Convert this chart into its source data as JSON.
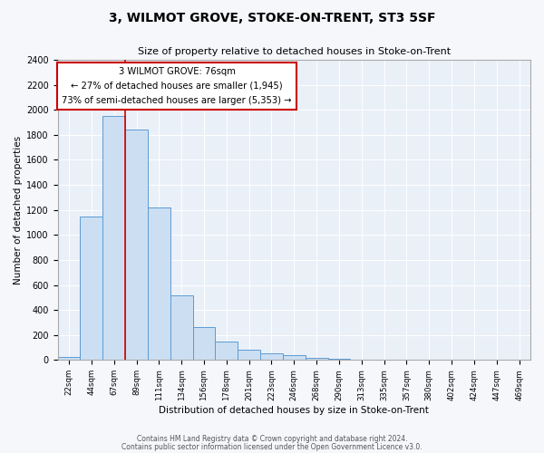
{
  "title": "3, WILMOT GROVE, STOKE-ON-TRENT, ST3 5SF",
  "subtitle": "Size of property relative to detached houses in Stoke-on-Trent",
  "xlabel": "Distribution of detached houses by size in Stoke-on-Trent",
  "ylabel": "Number of detached properties",
  "bin_labels": [
    "22sqm",
    "44sqm",
    "67sqm",
    "89sqm",
    "111sqm",
    "134sqm",
    "156sqm",
    "178sqm",
    "201sqm",
    "223sqm",
    "246sqm",
    "268sqm",
    "290sqm",
    "313sqm",
    "335sqm",
    "357sqm",
    "380sqm",
    "402sqm",
    "424sqm",
    "447sqm",
    "469sqm"
  ],
  "bar_heights": [
    25,
    1150,
    1950,
    1840,
    1220,
    520,
    265,
    150,
    80,
    55,
    40,
    15,
    8,
    3,
    2,
    1,
    1,
    1,
    1,
    1,
    0
  ],
  "bar_color": "#ccdff2",
  "bar_edge_color": "#5b9bd5",
  "ylim": [
    0,
    2400
  ],
  "yticks": [
    0,
    200,
    400,
    600,
    800,
    1000,
    1200,
    1400,
    1600,
    1800,
    2000,
    2200,
    2400
  ],
  "red_line_x": 3,
  "annotation_title": "3 WILMOT GROVE: 76sqm",
  "annotation_line1": "← 27% of detached houses are smaller (1,945)",
  "annotation_line2": "73% of semi-detached houses are larger (5,353) →",
  "annotation_box_color": "#ffffff",
  "annotation_box_edge": "#cc0000",
  "footnote1": "Contains HM Land Registry data © Crown copyright and database right 2024.",
  "footnote2": "Contains public sector information licensed under the Open Government Licence v3.0.",
  "bg_color": "#eaf0f8",
  "fig_bg_color": "#f5f7fb"
}
